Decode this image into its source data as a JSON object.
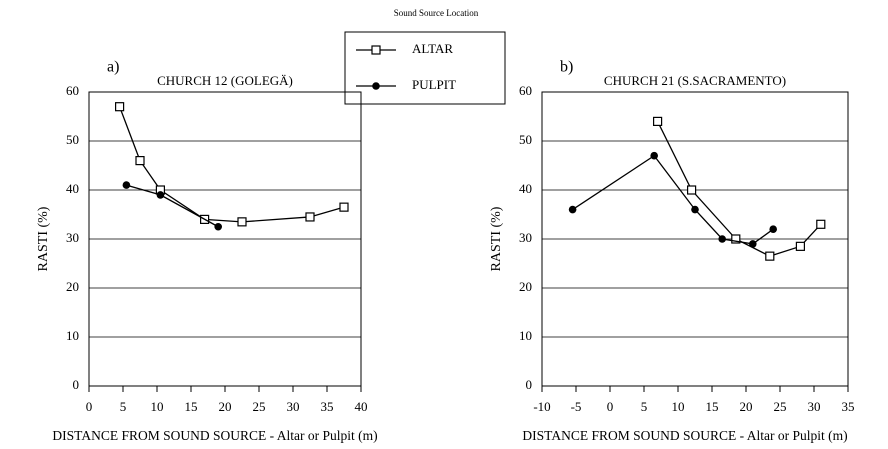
{
  "legend_title": "Sound Source Location",
  "chart_data": [
    {
      "type": "line",
      "panel_label": "a)",
      "title": "CHURCH 12 (GOLEGÄ)",
      "x_label": "DISTANCE FROM SOUND SOURCE - Altar or Pulpit (m)",
      "y_label": "RASTI (%)",
      "xlim": [
        0,
        40
      ],
      "xticks": [
        0,
        5,
        10,
        15,
        20,
        25,
        30,
        35,
        40
      ],
      "ylim": [
        0,
        60
      ],
      "yticks": [
        0,
        10,
        20,
        30,
        40,
        50,
        60
      ],
      "grid": true,
      "series": [
        {
          "name": "ALTAR",
          "color": "#000000",
          "marker": "square",
          "x": [
            4.5,
            7.5,
            10.5,
            17,
            22.5,
            32.5,
            37.5
          ],
          "values": [
            57,
            46,
            40,
            34,
            33.5,
            34.5,
            36.5
          ]
        },
        {
          "name": "PULPIT",
          "color": "#000000",
          "marker": "circle",
          "x": [
            5.5,
            10.5,
            19
          ],
          "values": [
            41,
            39,
            32.5
          ]
        }
      ]
    },
    {
      "type": "line",
      "panel_label": "b)",
      "title": "CHURCH 21 (S.SACRAMENTO)",
      "x_label": "DISTANCE FROM SOUND SOURCE - Altar or Pulpit (m)",
      "y_label": "RASTI (%)",
      "xlim": [
        -10,
        35
      ],
      "xticks": [
        -10,
        -5,
        0,
        5,
        10,
        15,
        20,
        25,
        30,
        35
      ],
      "ylim": [
        0,
        60
      ],
      "yticks": [
        0,
        10,
        20,
        30,
        40,
        50,
        60
      ],
      "grid": true,
      "series": [
        {
          "color": "#000000",
          "marker": "square",
          "x": [
            7,
            12,
            18.5,
            23.5,
            28,
            31
          ],
          "values": [
            54,
            40,
            30,
            26.5,
            28.5,
            33
          ]
        },
        {
          "color": "#000000",
          "marker": "circle",
          "x": [
            -5.5,
            6.5,
            12.5,
            16.5,
            21,
            24
          ],
          "values": [
            36,
            47,
            36,
            30,
            29,
            32
          ]
        }
      ]
    }
  ]
}
